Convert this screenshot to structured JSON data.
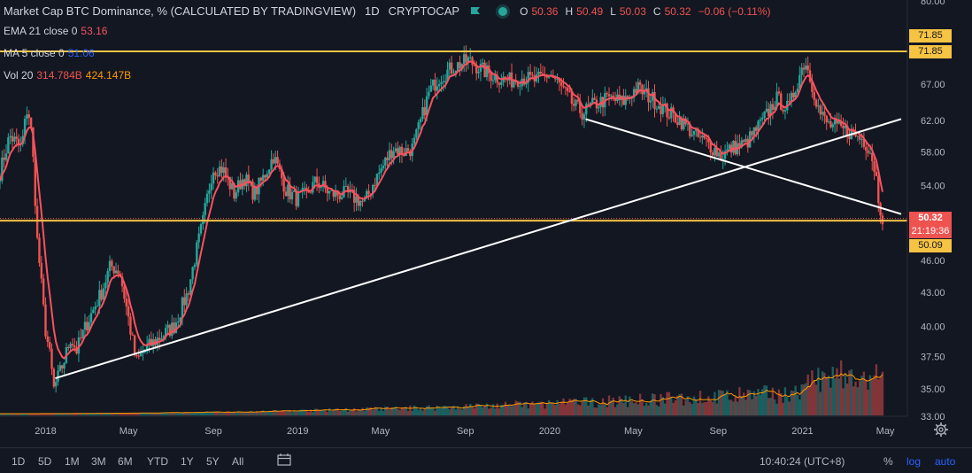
{
  "header": {
    "title": "Market Cap BTC Dominance, % (CALCULATED BY TRADINGVIEW)",
    "interval": "1D",
    "exchange": "CRYPTOCAP",
    "open_label": "O",
    "open": "50.36",
    "high_label": "H",
    "high": "50.49",
    "low_label": "L",
    "low": "50.03",
    "close_label": "C",
    "close": "50.32",
    "change": "−0.06 (−0.11%)"
  },
  "indicators": {
    "ema": {
      "label": "EMA 21 close 0",
      "value": "53.16",
      "color": "#f7525f"
    },
    "ma": {
      "label": "MA 5 close 0",
      "value": "51.06",
      "color": "#2962ff"
    },
    "vol": {
      "label": "Vol 20",
      "value1": "314.784B",
      "value2": "424.147B"
    }
  },
  "price_tags": {
    "top_upper": "71.85",
    "top_lower": "71.85",
    "current": "50.32",
    "countdown": "21:19:36",
    "level_low": "50.09"
  },
  "chart_data": {
    "type": "candlestick",
    "title": "Market Cap BTC Dominance, % (CALCULATED BY TRADINGVIEW)",
    "y_axis": {
      "scale": "log",
      "range": [
        33.0,
        80.0
      ],
      "tick_labels": [
        "80.00",
        "71.85",
        "67.00",
        "62.00",
        "58.00",
        "54.00",
        "50.32",
        "46.00",
        "43.00",
        "40.00",
        "37.50",
        "35.00",
        "33.00"
      ]
    },
    "x_axis": {
      "tick_labels": [
        "2018",
        "May",
        "Sep",
        "2019",
        "May",
        "Sep",
        "2020",
        "May",
        "Sep",
        "2021",
        "May"
      ],
      "range": [
        "2017-10-27",
        "2021-05-24"
      ]
    },
    "series": [
      {
        "name": "BTC Dominance",
        "approx_close": [
          [
            "2017-10-27",
            55.5
          ],
          [
            "2017-11-10",
            60.0
          ],
          [
            "2017-11-27",
            58.5
          ],
          [
            "2017-12-06",
            64.0
          ],
          [
            "2017-12-12",
            60.0
          ],
          [
            "2017-12-20",
            48.0
          ],
          [
            "2017-12-31",
            40.0
          ],
          [
            "2018-01-06",
            38.0
          ],
          [
            "2018-01-13",
            35.0
          ],
          [
            "2018-01-27",
            37.0
          ],
          [
            "2018-02-06",
            39.0
          ],
          [
            "2018-02-15",
            38.0
          ],
          [
            "2018-02-28",
            40.0
          ],
          [
            "2018-03-23",
            43.0
          ],
          [
            "2018-04-05",
            45.5
          ],
          [
            "2018-04-18",
            45.0
          ],
          [
            "2018-04-30",
            41.0
          ],
          [
            "2018-05-12",
            37.0
          ],
          [
            "2018-05-24",
            38.0
          ],
          [
            "2018-06-14",
            39.0
          ],
          [
            "2018-07-06",
            40.0
          ],
          [
            "2018-07-26",
            43.0
          ],
          [
            "2018-08-17",
            50.0
          ],
          [
            "2018-08-31",
            56.0
          ],
          [
            "2018-09-14",
            56.0
          ],
          [
            "2018-10-01",
            53.0
          ],
          [
            "2018-10-15",
            55.0
          ],
          [
            "2018-10-30",
            53.0
          ],
          [
            "2018-11-13",
            55.0
          ],
          [
            "2018-11-27",
            57.5
          ],
          [
            "2018-12-15",
            53.5
          ],
          [
            "2018-12-30",
            52.5
          ],
          [
            "2019-01-14",
            53.0
          ],
          [
            "2019-01-28",
            54.5
          ],
          [
            "2019-02-18",
            53.0
          ],
          [
            "2019-03-14",
            53.0
          ],
          [
            "2019-04-08",
            52.0
          ],
          [
            "2019-04-22",
            54.5
          ],
          [
            "2019-05-03",
            56.0
          ],
          [
            "2019-05-19",
            58.5
          ],
          [
            "2019-06-03",
            58.0
          ],
          [
            "2019-06-17",
            58.5
          ],
          [
            "2019-06-27",
            61.5
          ],
          [
            "2019-07-11",
            66.0
          ],
          [
            "2019-07-25",
            68.0
          ],
          [
            "2019-08-15",
            69.5
          ],
          [
            "2019-09-05",
            70.5
          ],
          [
            "2019-09-26",
            69.0
          ],
          [
            "2019-10-16",
            68.0
          ],
          [
            "2019-11-05",
            67.5
          ],
          [
            "2019-11-22",
            68.0
          ],
          [
            "2019-12-12",
            67.5
          ],
          [
            "2020-01-01",
            68.5
          ],
          [
            "2020-01-14",
            67.0
          ],
          [
            "2020-02-05",
            64.0
          ],
          [
            "2020-02-18",
            63.0
          ],
          [
            "2020-03-02",
            64.0
          ],
          [
            "2020-03-26",
            65.0
          ],
          [
            "2020-04-16",
            64.5
          ],
          [
            "2020-05-06",
            66.5
          ],
          [
            "2020-05-28",
            65.0
          ],
          [
            "2020-06-21",
            63.0
          ],
          [
            "2020-07-09",
            62.0
          ],
          [
            "2020-07-30",
            60.0
          ],
          [
            "2020-08-18",
            59.0
          ],
          [
            "2020-09-05",
            57.5
          ],
          [
            "2020-09-21",
            58.5
          ],
          [
            "2020-10-11",
            59.0
          ],
          [
            "2020-11-05",
            62.0
          ],
          [
            "2020-11-24",
            65.0
          ],
          [
            "2020-12-12",
            63.5
          ],
          [
            "2020-12-30",
            69.0
          ],
          [
            "2021-01-05",
            70.5
          ],
          [
            "2021-01-12",
            68.0
          ],
          [
            "2021-01-26",
            63.0
          ],
          [
            "2021-02-07",
            61.5
          ],
          [
            "2021-02-21",
            61.0
          ],
          [
            "2021-03-11",
            60.5
          ],
          [
            "2021-03-30",
            59.5
          ],
          [
            "2021-04-08",
            58.5
          ],
          [
            "2021-04-17",
            55.5
          ],
          [
            "2021-04-22",
            52.0
          ],
          [
            "2021-04-28",
            50.3
          ]
        ]
      },
      {
        "name": "EMA 21 close 0",
        "color": "#f7525f"
      },
      {
        "name": "Vol 20",
        "type": "bar"
      }
    ],
    "horizontal_levels": [
      {
        "value": 71.85,
        "color": "#f6c343"
      },
      {
        "value": 50.09,
        "color": "#f6c343"
      }
    ],
    "trendlines": [
      {
        "from": [
          "2018-01-15",
          35.8
        ],
        "to": [
          "2021-05-24",
          62.2
        ],
        "color": "#ffffff"
      },
      {
        "from": [
          "2020-02-22",
          62.2
        ],
        "to": [
          "2021-05-24",
          50.8
        ],
        "color": "#ffffff"
      }
    ],
    "grid": false,
    "legend_placement": "top-left"
  },
  "bottom_bar": {
    "ranges": [
      "1D",
      "5D",
      "1M",
      "3M",
      "6M",
      "YTD",
      "1Y",
      "5Y",
      "All"
    ],
    "clock": "10:40:24 (UTC+8)",
    "percent": "%",
    "log": "log",
    "auto": "auto"
  },
  "colors": {
    "up": "#26a69a",
    "down": "#ef5350",
    "ema": "#f7525f",
    "level": "#f6c343",
    "background": "#131722"
  }
}
